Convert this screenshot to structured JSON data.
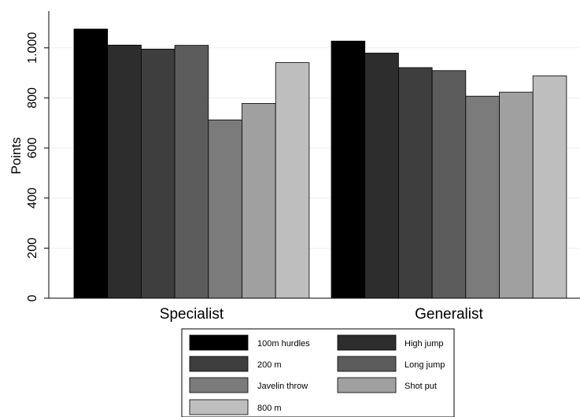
{
  "chart_data": {
    "type": "bar",
    "title": "",
    "xlabel": "",
    "ylabel": "Points",
    "ylim": [
      0,
      1100
    ],
    "yticks": [
      0,
      200,
      400,
      600,
      800,
      1000
    ],
    "ytick_labels": [
      "0",
      "200",
      "400",
      "600",
      "800",
      "1.000"
    ],
    "grid": "horizontal",
    "legend_position": "bottom",
    "categories": [
      "Specialist",
      "Generalist"
    ],
    "series": [
      {
        "name": "100m hurdles",
        "values": [
          1075,
          1027
        ],
        "color": "#000000"
      },
      {
        "name": "High jump",
        "values": [
          1011,
          979
        ],
        "color": "#2d2d2d"
      },
      {
        "name": "200 m",
        "values": [
          995,
          921
        ],
        "color": "#3e3e3e"
      },
      {
        "name": "Long jump",
        "values": [
          1010,
          909
        ],
        "color": "#5c5c5c"
      },
      {
        "name": "Javelin throw",
        "values": [
          712,
          807
        ],
        "color": "#7b7b7b"
      },
      {
        "name": "Shot put",
        "values": [
          778,
          823
        ],
        "color": "#a0a0a0"
      },
      {
        "name": "800 m",
        "values": [
          941,
          888
        ],
        "color": "#bebebe"
      }
    ]
  }
}
